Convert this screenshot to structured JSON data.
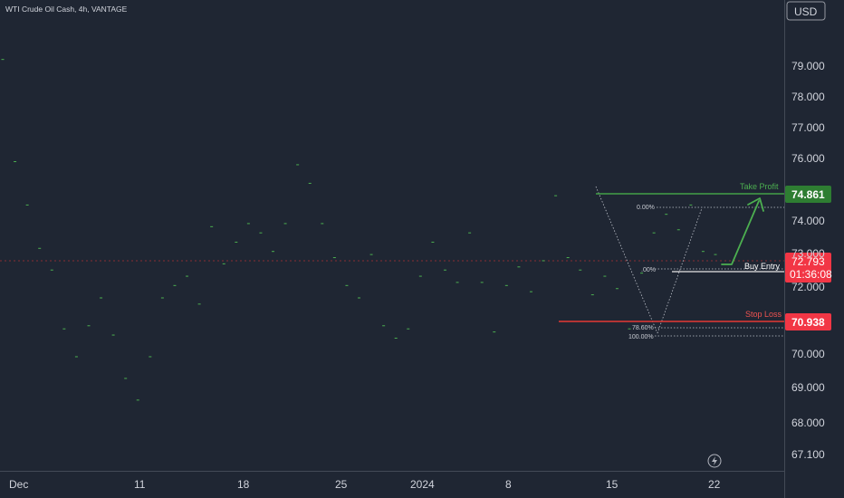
{
  "header": {
    "title": "WTI Crude Oil Cash, 4h, VANTAGE",
    "currency": "USD"
  },
  "colors": {
    "bg": "#1f2633",
    "up": "#4caf50",
    "down": "#e53935",
    "green_line": "#43a047",
    "red_line": "#e53935",
    "price_tag": "#f23645",
    "axis": "#d1d4dc",
    "dotted": "#bfc3cc"
  },
  "chart_data": {
    "type": "candlestick",
    "title": "WTI Crude Oil Cash, 4h, VANTAGE",
    "y_ticks": [
      "79.000",
      "78.000",
      "77.000",
      "76.000",
      "74.000",
      "73.000",
      "72.000",
      "70.000",
      "69.000",
      "68.000",
      "67.100"
    ],
    "x_ticks": [
      "Dec",
      "11",
      "18",
      "25",
      "2024",
      "8",
      "15",
      "22"
    ],
    "series": [
      {
        "name": "WTI Crude Oil Cash",
        "values": [
          [
            79.2,
            79.2,
            79.2,
            79.2
          ],
          [
            75.9,
            75.9,
            75.9,
            75.9
          ],
          [
            74.5,
            74.5,
            74.5,
            74.5
          ],
          [
            73.1,
            73.1,
            73.1,
            73.1
          ],
          [
            72.4,
            72.4,
            72.4,
            72.4
          ],
          [
            70.5,
            70.5,
            70.5,
            70.5
          ],
          [
            69.6,
            69.6,
            69.6,
            69.6
          ],
          [
            70.6,
            70.6,
            70.6,
            70.6
          ],
          [
            71.5,
            71.5,
            71.5,
            71.5
          ],
          [
            70.3,
            70.3,
            70.3,
            70.3
          ],
          [
            68.9,
            68.9,
            68.9,
            68.9
          ],
          [
            68.2,
            68.2,
            68.2,
            68.2
          ],
          [
            69.6,
            69.6,
            69.6,
            69.6
          ],
          [
            71.5,
            71.5,
            71.5,
            71.5
          ],
          [
            71.9,
            71.9,
            71.9,
            71.9
          ],
          [
            72.2,
            72.2,
            72.2,
            72.2
          ],
          [
            71.3,
            71.3,
            71.3,
            71.3
          ],
          [
            73.8,
            73.8,
            73.8,
            73.8
          ],
          [
            72.6,
            72.6,
            72.6,
            72.6
          ],
          [
            73.3,
            73.3,
            73.3,
            73.3
          ],
          [
            73.9,
            73.9,
            73.9,
            73.9
          ],
          [
            73.6,
            73.6,
            73.6,
            73.6
          ],
          [
            73.0,
            73.0,
            73.0,
            73.0
          ],
          [
            73.9,
            73.9,
            73.9,
            73.9
          ],
          [
            75.8,
            75.8,
            75.8,
            75.8
          ],
          [
            75.2,
            75.2,
            75.2,
            75.2
          ],
          [
            73.9,
            73.9,
            73.9,
            73.9
          ],
          [
            72.8,
            72.8,
            72.8,
            72.8
          ],
          [
            71.9,
            71.9,
            71.9,
            71.9
          ],
          [
            71.5,
            71.5,
            71.5,
            71.5
          ],
          [
            72.9,
            72.9,
            72.9,
            72.9
          ],
          [
            70.6,
            70.6,
            70.6,
            70.6
          ],
          [
            70.2,
            70.2,
            70.2,
            70.2
          ],
          [
            70.5,
            70.5,
            70.5,
            70.5
          ],
          [
            72.2,
            72.2,
            72.2,
            72.2
          ],
          [
            73.3,
            73.3,
            73.3,
            73.3
          ],
          [
            72.4,
            72.4,
            72.4,
            72.4
          ],
          [
            72.0,
            72.0,
            72.0,
            72.0
          ],
          [
            73.6,
            73.6,
            73.6,
            73.6
          ],
          [
            72.0,
            72.0,
            72.0,
            72.0
          ],
          [
            70.4,
            70.4,
            70.4,
            70.4
          ],
          [
            71.9,
            71.9,
            71.9,
            71.9
          ],
          [
            72.5,
            72.5,
            72.5,
            72.5
          ],
          [
            71.7,
            71.7,
            71.7,
            71.7
          ],
          [
            72.7,
            72.7,
            72.7,
            72.7
          ],
          [
            74.8,
            74.8,
            74.8,
            74.8
          ],
          [
            72.8,
            72.8,
            72.8,
            72.8
          ],
          [
            72.4,
            72.4,
            72.4,
            72.4
          ],
          [
            71.6,
            71.6,
            71.6,
            71.6
          ],
          [
            72.2,
            72.2,
            72.2,
            72.2
          ],
          [
            71.8,
            71.8,
            71.8,
            71.8
          ],
          [
            70.5,
            70.5,
            70.5,
            70.5
          ],
          [
            72.3,
            72.3,
            72.3,
            72.3
          ],
          [
            73.6,
            73.6,
            73.6,
            73.6
          ],
          [
            74.2,
            74.2,
            74.2,
            74.2
          ],
          [
            73.7,
            73.7,
            73.7,
            73.7
          ],
          [
            74.5,
            74.5,
            74.5,
            74.5
          ],
          [
            73.0,
            73.0,
            73.0,
            73.0
          ],
          [
            72.9,
            72.9,
            72.9,
            72.9
          ]
        ]
      }
    ],
    "levels": [
      {
        "name": "Take Profit",
        "value": 74.861
      },
      {
        "name": "Buy Entry",
        "value": 72.4
      },
      {
        "name": "Stop Loss",
        "value": 70.938
      }
    ],
    "fib_labels": [
      "0.00%",
      "78.60%",
      "100.00%"
    ],
    "fib_lone_label": ".00%",
    "annotations": {
      "take_profit": "Take Profit",
      "buy_entry": "Buy Entry",
      "stop_loss": "Stop Loss"
    },
    "price_tags": {
      "take_profit": "74.861",
      "current": "72.793",
      "countdown": "01:36:08",
      "stop_loss": "70.938"
    }
  }
}
